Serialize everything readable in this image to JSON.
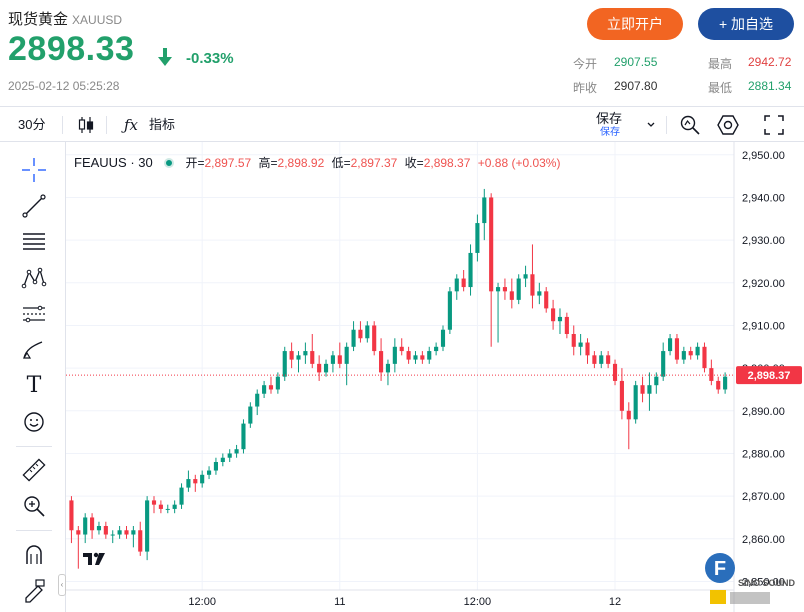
{
  "header": {
    "name": "现货黄金",
    "code": "XAUUSD",
    "price": "2898.33",
    "change": "-0.33%",
    "datetime": "2025-02-12 05:25:28",
    "open_account_label": "立即开户",
    "add_watch_label": "+ 加自选",
    "stats": [
      {
        "label": "今开",
        "value": "2907.55",
        "color": "#22a06b"
      },
      {
        "label": "最高",
        "value": "2942.72",
        "color": "#e04040"
      },
      {
        "label": "昨收",
        "value": "2907.80",
        "color": "#333333"
      },
      {
        "label": "最低",
        "value": "2881.34",
        "color": "#22a06b"
      }
    ]
  },
  "toolbar": {
    "interval": "30分",
    "indicators_label": "指标",
    "save_label": "保存",
    "save_sub_label": "保存"
  },
  "sidebar_icons": [
    "crosshair-icon",
    "trend-line-icon",
    "fib-retracement-icon",
    "pattern-icon",
    "prediction-icon",
    "brush-icon",
    "text-icon",
    "emoji-icon",
    "ruler-icon",
    "zoom-in-icon",
    "magnet-icon",
    "lock-draw-icon"
  ],
  "legend": {
    "symbol": "FEAUUS · 30",
    "open_label": "开=",
    "open": "2,897.57",
    "high_label": "高=",
    "high": "2,898.92",
    "low_label": "低=",
    "low": "2,897.37",
    "close_label": "收=",
    "close": "2,898.37",
    "change": "+0.88 (+0.03%)"
  },
  "colors": {
    "up": "#089981",
    "down": "#f23645",
    "grid": "#f0f3fa",
    "price_line": "#f23645"
  },
  "chart_data": {
    "type": "candlestick",
    "x_tick_labels": [
      "12:00",
      "11",
      "12:00",
      "12"
    ],
    "y_ticks": [
      2850,
      2860,
      2870,
      2880,
      2890,
      2900,
      2910,
      2920,
      2930,
      2940,
      2950
    ],
    "y_tick_labels": [
      "2,850.00",
      "2,860.00",
      "2,870.00",
      "2,880.00",
      "2,890.00",
      "2,900.00",
      "2,910.00",
      "2,920.00",
      "2,930.00",
      "2,940.00",
      "2,950.00"
    ],
    "ylim": [
      2848,
      2953
    ],
    "last_price": 2898.37,
    "last_price_label": "2,898.37",
    "x_tick_positions": [
      19,
      39,
      59,
      79
    ],
    "candles": [
      [
        2869,
        2870,
        2859,
        2862
      ],
      [
        2862,
        2863,
        2853,
        2861
      ],
      [
        2861,
        2866,
        2859,
        2865
      ],
      [
        2865,
        2866,
        2860,
        2862
      ],
      [
        2862,
        2864,
        2861,
        2863
      ],
      [
        2863,
        2864,
        2860,
        2861
      ],
      [
        2861,
        2862,
        2859,
        2861
      ],
      [
        2861,
        2863,
        2860,
        2862
      ],
      [
        2862,
        2863,
        2860,
        2861
      ],
      [
        2861,
        2863,
        2858,
        2862
      ],
      [
        2862,
        2864,
        2856,
        2857
      ],
      [
        2857,
        2870,
        2855,
        2869
      ],
      [
        2869,
        2870,
        2866,
        2868
      ],
      [
        2868,
        2869,
        2866,
        2867
      ],
      [
        2867,
        2868,
        2866,
        2867
      ],
      [
        2867,
        2869,
        2866,
        2868
      ],
      [
        2868,
        2873,
        2867,
        2872
      ],
      [
        2872,
        2876,
        2871,
        2874
      ],
      [
        2874,
        2875,
        2871,
        2873
      ],
      [
        2873,
        2876,
        2872,
        2875
      ],
      [
        2875,
        2877,
        2874,
        2876
      ],
      [
        2876,
        2879,
        2875,
        2878
      ],
      [
        2878,
        2880,
        2877,
        2879
      ],
      [
        2879,
        2881,
        2878,
        2880
      ],
      [
        2880,
        2882,
        2879,
        2881
      ],
      [
        2881,
        2888,
        2880,
        2887
      ],
      [
        2887,
        2892,
        2886,
        2891
      ],
      [
        2891,
        2895,
        2889,
        2894
      ],
      [
        2894,
        2897,
        2893,
        2896
      ],
      [
        2896,
        2898,
        2894,
        2895
      ],
      [
        2895,
        2899,
        2894,
        2898
      ],
      [
        2898,
        2905,
        2897,
        2904
      ],
      [
        2904,
        2906,
        2900,
        2902
      ],
      [
        2902,
        2904,
        2899,
        2903
      ],
      [
        2903,
        2906,
        2901,
        2904
      ],
      [
        2904,
        2908,
        2900,
        2901
      ],
      [
        2901,
        2903,
        2897,
        2899
      ],
      [
        2899,
        2902,
        2898,
        2901
      ],
      [
        2901,
        2904,
        2899,
        2903
      ],
      [
        2903,
        2906,
        2900,
        2901
      ],
      [
        2901,
        2906,
        2896,
        2905
      ],
      [
        2905,
        2911,
        2904,
        2909
      ],
      [
        2909,
        2911,
        2906,
        2907
      ],
      [
        2907,
        2911,
        2906,
        2910
      ],
      [
        2910,
        2911,
        2903,
        2904
      ],
      [
        2904,
        2907,
        2897,
        2899
      ],
      [
        2899,
        2902,
        2896,
        2901
      ],
      [
        2901,
        2907,
        2899,
        2905
      ],
      [
        2905,
        2907,
        2903,
        2904
      ],
      [
        2904,
        2905,
        2901,
        2902
      ],
      [
        2902,
        2904,
        2901,
        2903
      ],
      [
        2903,
        2904,
        2901,
        2902
      ],
      [
        2902,
        2905,
        2901,
        2904
      ],
      [
        2904,
        2906,
        2903,
        2905
      ],
      [
        2905,
        2910,
        2904,
        2909
      ],
      [
        2909,
        2919,
        2908,
        2918
      ],
      [
        2918,
        2922,
        2916,
        2921
      ],
      [
        2921,
        2923,
        2918,
        2919
      ],
      [
        2919,
        2929,
        2917,
        2927
      ],
      [
        2927,
        2936,
        2925,
        2934
      ],
      [
        2934,
        2942,
        2930,
        2940
      ],
      [
        2940,
        2941,
        2905,
        2918
      ],
      [
        2918,
        2920,
        2906,
        2919
      ],
      [
        2919,
        2921,
        2916,
        2918
      ],
      [
        2918,
        2921,
        2914,
        2916
      ],
      [
        2916,
        2922,
        2915,
        2921
      ],
      [
        2921,
        2924,
        2919,
        2922
      ],
      [
        2922,
        2929,
        2914,
        2917
      ],
      [
        2917,
        2920,
        2915,
        2918
      ],
      [
        2918,
        2919,
        2913,
        2914
      ],
      [
        2914,
        2916,
        2909,
        2911
      ],
      [
        2911,
        2914,
        2908,
        2912
      ],
      [
        2912,
        2913,
        2907,
        2908
      ],
      [
        2908,
        2910,
        2903,
        2905
      ],
      [
        2905,
        2908,
        2903,
        2906
      ],
      [
        2906,
        2907,
        2901,
        2903
      ],
      [
        2903,
        2904,
        2900,
        2901
      ],
      [
        2901,
        2904,
        2900,
        2903
      ],
      [
        2903,
        2904,
        2900,
        2901
      ],
      [
        2901,
        2902,
        2896,
        2897
      ],
      [
        2897,
        2900,
        2888,
        2890
      ],
      [
        2890,
        2892,
        2881,
        2888
      ],
      [
        2888,
        2897,
        2887,
        2896
      ],
      [
        2896,
        2898,
        2892,
        2894
      ],
      [
        2894,
        2899,
        2890,
        2896
      ],
      [
        2896,
        2899,
        2894,
        2898
      ],
      [
        2898,
        2906,
        2897,
        2904
      ],
      [
        2904,
        2908,
        2903,
        2907
      ],
      [
        2907,
        2908,
        2901,
        2902
      ],
      [
        2902,
        2905,
        2901,
        2904
      ],
      [
        2904,
        2905,
        2902,
        2903
      ],
      [
        2903,
        2906,
        2902,
        2905
      ],
      [
        2905,
        2906,
        2899,
        2900
      ],
      [
        2900,
        2902,
        2896,
        2897
      ],
      [
        2897,
        2898,
        2894,
        2895
      ],
      [
        2895,
        2899,
        2894,
        2898
      ]
    ]
  }
}
